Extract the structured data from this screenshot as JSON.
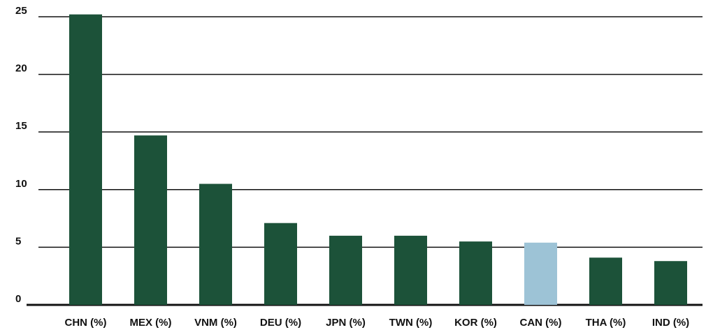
{
  "chart_data": {
    "type": "bar",
    "categories": [
      "CHN (%)",
      "MEX (%)",
      "VNM (%)",
      "DEU (%)",
      "JPN (%)",
      "TWN (%)",
      "KOR (%)",
      "CAN (%)",
      "THA (%)",
      "IND (%)"
    ],
    "values": [
      25.2,
      14.7,
      10.5,
      7.1,
      6.0,
      6.0,
      5.5,
      5.4,
      4.1,
      3.8
    ],
    "colors": [
      "#1c5239",
      "#1c5239",
      "#1c5239",
      "#1c5239",
      "#1c5239",
      "#1c5239",
      "#1c5239",
      "#9dc3d6",
      "#1c5239",
      "#1c5239"
    ],
    "ylim": [
      0,
      25.5
    ],
    "yticks": [
      0,
      5,
      10,
      15,
      20,
      25
    ],
    "grid": true
  }
}
